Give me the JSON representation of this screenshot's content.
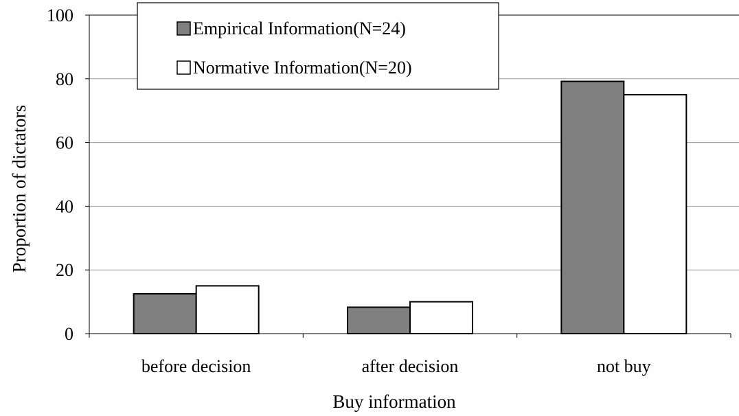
{
  "chart_data": {
    "type": "bar",
    "title": "",
    "xlabel": "Buy information",
    "ylabel": "Proportion of dictators",
    "categories": [
      "before decision",
      "after decision",
      "not buy"
    ],
    "series": [
      {
        "name": "Empirical Information(N=24)",
        "values": [
          12.5,
          8.3,
          79.2
        ],
        "color": "#808080"
      },
      {
        "name": "Normative Information(N=20)",
        "values": [
          15,
          10,
          75
        ],
        "color": "#ffffff"
      }
    ],
    "ylim": [
      0,
      100
    ],
    "yticks": [
      0,
      20,
      40,
      60,
      80,
      100
    ],
    "grid": true,
    "legend_position": "top-left"
  }
}
